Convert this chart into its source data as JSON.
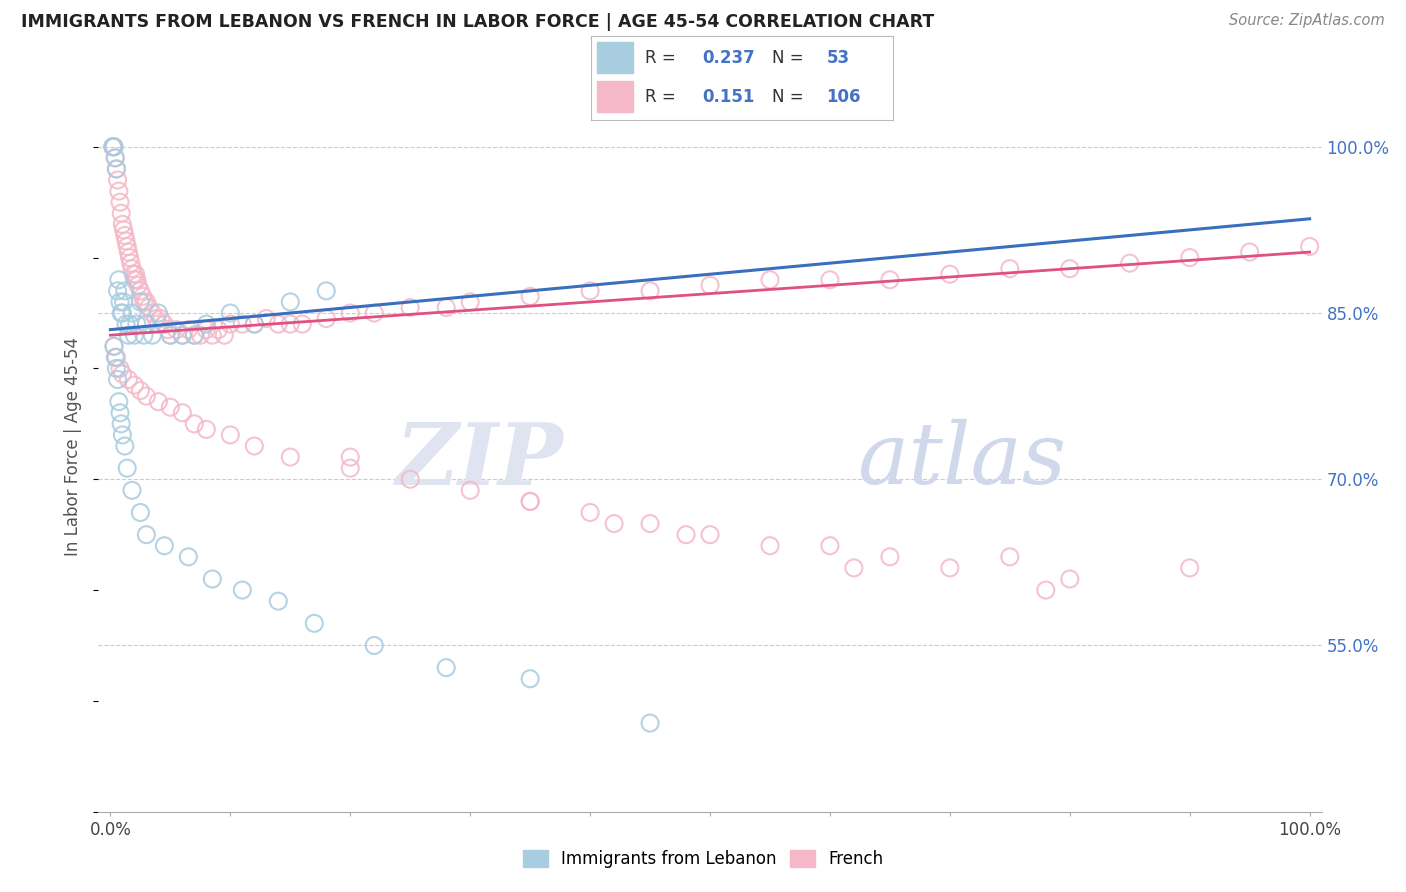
{
  "title": "IMMIGRANTS FROM LEBANON VS FRENCH IN LABOR FORCE | AGE 45-54 CORRELATION CHART",
  "source": "Source: ZipAtlas.com",
  "ylabel": "In Labor Force | Age 45-54",
  "legend_label_blue": "Immigrants from Lebanon",
  "legend_label_pink": "French",
  "R_blue": 0.237,
  "N_blue": 53,
  "R_pink": 0.151,
  "N_pink": 106,
  "blue_color": "#a8cce0",
  "pink_color": "#f4b8c8",
  "trend_blue_color": "#3a6fbf",
  "trend_pink_color": "#e05080",
  "blue_trend_x": [
    0,
    100
  ],
  "blue_trend_y": [
    83.5,
    93.5
  ],
  "pink_trend_x": [
    0,
    100
  ],
  "pink_trend_y": [
    83.0,
    90.5
  ],
  "xlim": [
    -1,
    101
  ],
  "ylim": [
    40,
    106
  ],
  "yticks": [
    55,
    70,
    85,
    100
  ],
  "ytick_labels": [
    "55.0%",
    "70.0%",
    "85.0%",
    "100.0%"
  ],
  "blue_x": [
    0.2,
    0.3,
    0.4,
    0.5,
    0.6,
    0.7,
    0.8,
    0.9,
    1.0,
    1.1,
    1.2,
    1.3,
    1.5,
    1.6,
    1.8,
    2.0,
    2.2,
    2.5,
    2.8,
    3.0,
    3.5,
    4.0,
    5.0,
    6.0,
    7.0,
    8.0,
    10.0,
    12.0,
    15.0,
    18.0,
    0.3,
    0.4,
    0.5,
    0.6,
    0.7,
    0.8,
    0.9,
    1.0,
    1.2,
    1.4,
    1.8,
    2.5,
    3.0,
    4.5,
    6.5,
    8.5,
    11.0,
    14.0,
    17.0,
    22.0,
    28.0,
    35.0,
    45.0
  ],
  "blue_y": [
    100.0,
    100.0,
    99.0,
    98.0,
    87.0,
    88.0,
    86.0,
    85.0,
    85.0,
    86.0,
    87.0,
    84.0,
    83.0,
    84.0,
    85.0,
    83.0,
    84.0,
    86.0,
    83.0,
    84.0,
    83.0,
    85.0,
    83.0,
    83.0,
    83.0,
    84.0,
    85.0,
    84.0,
    86.0,
    87.0,
    82.0,
    81.0,
    80.0,
    79.0,
    77.0,
    76.0,
    75.0,
    74.0,
    73.0,
    71.0,
    69.0,
    67.0,
    65.0,
    64.0,
    63.0,
    61.0,
    60.0,
    59.0,
    57.0,
    55.0,
    53.0,
    52.0,
    48.0
  ],
  "pink_x": [
    0.2,
    0.3,
    0.4,
    0.5,
    0.6,
    0.7,
    0.8,
    0.9,
    1.0,
    1.1,
    1.2,
    1.3,
    1.4,
    1.5,
    1.6,
    1.7,
    1.8,
    1.9,
    2.0,
    2.1,
    2.2,
    2.3,
    2.5,
    2.7,
    2.8,
    3.0,
    3.2,
    3.5,
    3.8,
    4.0,
    4.2,
    4.5,
    4.8,
    5.0,
    5.5,
    6.0,
    6.5,
    7.0,
    7.5,
    8.0,
    8.5,
    9.0,
    9.5,
    10.0,
    11.0,
    12.0,
    13.0,
    14.0,
    15.0,
    16.0,
    18.0,
    20.0,
    22.0,
    25.0,
    28.0,
    30.0,
    35.0,
    40.0,
    45.0,
    50.0,
    55.0,
    60.0,
    65.0,
    70.0,
    75.0,
    80.0,
    85.0,
    90.0,
    95.0,
    100.0,
    0.3,
    0.5,
    0.8,
    1.0,
    1.5,
    2.0,
    2.5,
    3.0,
    4.0,
    5.0,
    6.0,
    7.0,
    8.0,
    10.0,
    12.0,
    15.0,
    20.0,
    25.0,
    35.0,
    50.0,
    65.0,
    80.0,
    30.0,
    40.0,
    55.0,
    70.0,
    45.0,
    60.0,
    75.0,
    90.0,
    20.0,
    35.0,
    48.0,
    62.0,
    78.0,
    42.0
  ],
  "pink_y": [
    100.0,
    100.0,
    99.0,
    98.0,
    97.0,
    96.0,
    95.0,
    94.0,
    93.0,
    92.5,
    92.0,
    91.5,
    91.0,
    90.5,
    90.0,
    89.5,
    89.0,
    88.5,
    88.0,
    88.5,
    88.0,
    87.5,
    87.0,
    86.5,
    86.0,
    86.0,
    85.5,
    85.0,
    84.5,
    84.0,
    84.5,
    84.0,
    83.5,
    83.0,
    83.5,
    83.0,
    83.5,
    83.0,
    83.0,
    83.5,
    83.0,
    83.5,
    83.0,
    84.0,
    84.0,
    84.0,
    84.5,
    84.0,
    84.0,
    84.0,
    84.5,
    85.0,
    85.0,
    85.5,
    85.5,
    86.0,
    86.5,
    87.0,
    87.0,
    87.5,
    88.0,
    88.0,
    88.0,
    88.5,
    89.0,
    89.0,
    89.5,
    90.0,
    90.5,
    91.0,
    82.0,
    81.0,
    80.0,
    79.5,
    79.0,
    78.5,
    78.0,
    77.5,
    77.0,
    76.5,
    76.0,
    75.0,
    74.5,
    74.0,
    73.0,
    72.0,
    71.0,
    70.0,
    68.0,
    65.0,
    63.0,
    61.0,
    69.0,
    67.0,
    64.0,
    62.0,
    66.0,
    64.0,
    63.0,
    62.0,
    72.0,
    68.0,
    65.0,
    62.0,
    60.0,
    66.0
  ]
}
